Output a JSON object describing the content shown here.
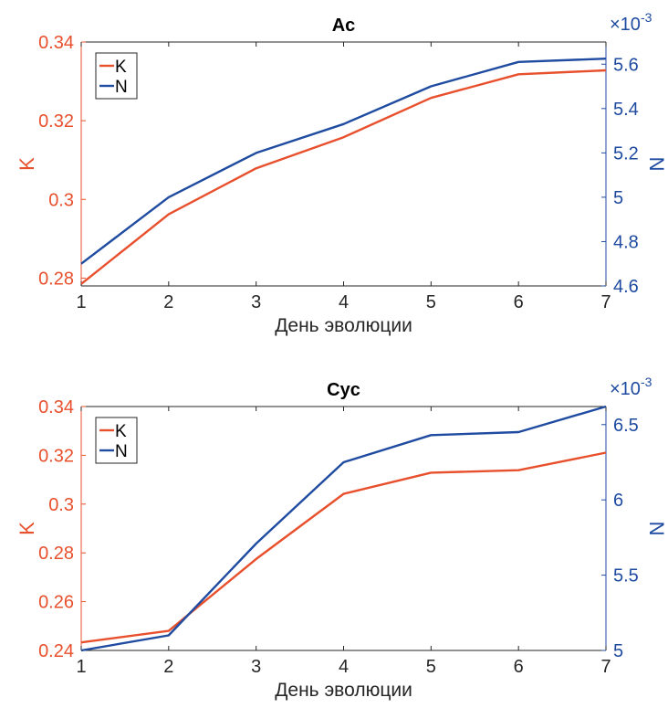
{
  "chart_data": [
    {
      "type": "line",
      "title": "Ac",
      "xlabel": "День эволюции",
      "ylabel_left": "K",
      "ylabel_right": "N",
      "right_axis_multiplier": "×10",
      "right_axis_exponent": "-3",
      "x": [
        1,
        2,
        3,
        4,
        5,
        6,
        7
      ],
      "xlim": [
        1,
        7
      ],
      "xticks": [
        "1",
        "2",
        "3",
        "4",
        "5",
        "6",
        "7"
      ],
      "ylim_left": [
        0.278,
        0.34
      ],
      "yticks_left": [
        "0.28",
        "0.3",
        "0.32",
        "0.34"
      ],
      "ylim_right": [
        4.6,
        5.7
      ],
      "yticks_right": [
        "4.6",
        "4.8",
        "5",
        "5.2",
        "5.4",
        "5.6"
      ],
      "legend_position": "top-left",
      "series": [
        {
          "name": "K",
          "axis": "left",
          "color": "#E8502D",
          "values": [
            0.2785,
            0.2962,
            0.3079,
            0.3158,
            0.3258,
            0.3318,
            0.3328
          ]
        },
        {
          "name": "N",
          "axis": "right",
          "color": "#1F4BA0",
          "values": [
            4.7,
            5.0,
            5.2,
            5.33,
            5.5,
            5.61,
            5.625
          ]
        }
      ]
    },
    {
      "type": "line",
      "title": "Cyc",
      "xlabel": "День эволюции",
      "ylabel_left": "K",
      "ylabel_right": "N",
      "right_axis_multiplier": "×10",
      "right_axis_exponent": "-3",
      "x": [
        1,
        2,
        3,
        4,
        5,
        6,
        7
      ],
      "xlim": [
        1,
        7
      ],
      "xticks": [
        "1",
        "2",
        "3",
        "4",
        "5",
        "6",
        "7"
      ],
      "ylim_left": [
        0.24,
        0.34
      ],
      "yticks_left": [
        "0.24",
        "0.26",
        "0.28",
        "0.3",
        "0.32",
        "0.34"
      ],
      "ylim_right": [
        5.0,
        6.62
      ],
      "yticks_right": [
        "5",
        "5.5",
        "6",
        "6.5"
      ],
      "legend_position": "top-left",
      "series": [
        {
          "name": "K",
          "axis": "left",
          "color": "#E8502D",
          "values": [
            0.2433,
            0.248,
            0.2775,
            0.3042,
            0.3129,
            0.3139,
            0.3211
          ]
        },
        {
          "name": "N",
          "axis": "right",
          "color": "#1F4BA0",
          "values": [
            5.0,
            5.1,
            5.71,
            6.25,
            6.43,
            6.45,
            6.62
          ]
        }
      ]
    }
  ]
}
